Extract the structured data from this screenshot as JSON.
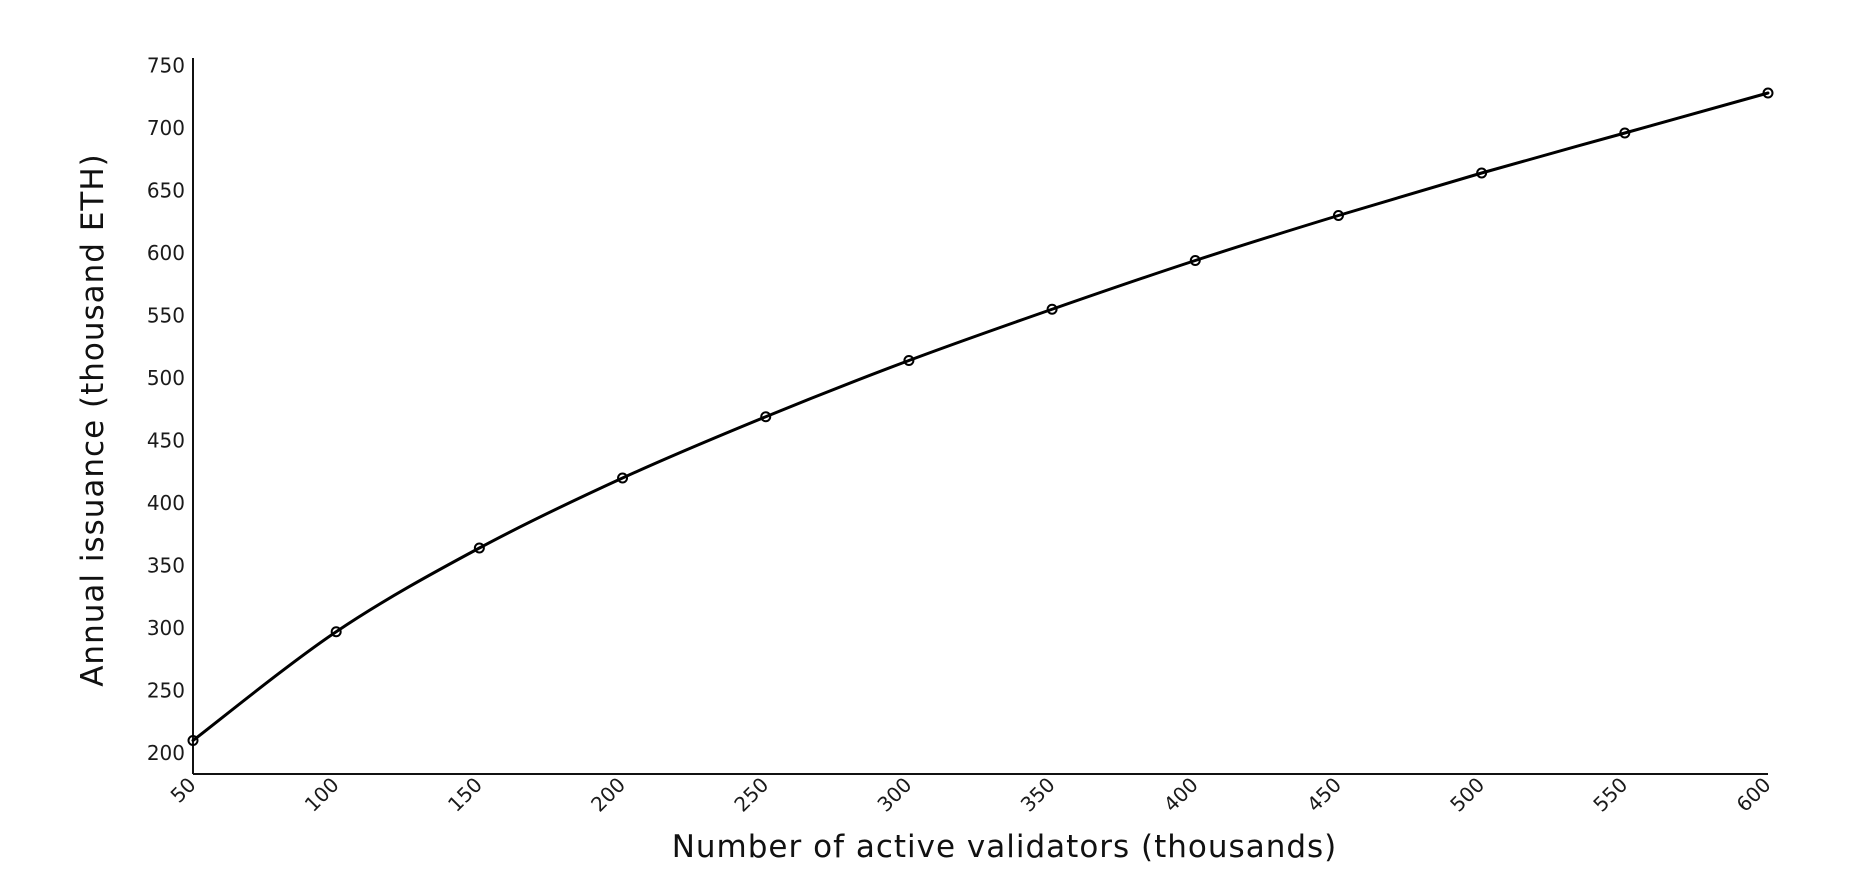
{
  "chart_data": {
    "type": "line",
    "title": "",
    "xlabel": "Number of active validators (thousands)",
    "ylabel": "Annual issuance (thousand ETH)",
    "x": [
      50,
      100,
      150,
      200,
      250,
      300,
      350,
      400,
      450,
      500,
      550,
      600
    ],
    "x_tick_labels": [
      "50",
      "100",
      "150",
      "200",
      "250",
      "300",
      "350",
      "400",
      "450",
      "500",
      "550",
      "600"
    ],
    "y_ticks": [
      200,
      250,
      300,
      350,
      400,
      450,
      500,
      550,
      600,
      650,
      700,
      750
    ],
    "y_tick_labels": [
      "200",
      "250",
      "300",
      "350",
      "400",
      "450",
      "500",
      "550",
      "600",
      "650",
      "700",
      "750"
    ],
    "xlim": [
      50,
      600
    ],
    "ylim": [
      183,
      750
    ],
    "grid": false,
    "legend": "none",
    "series": [
      {
        "values": [
          210,
          297,
          364,
          420,
          469,
          514,
          555,
          594,
          630,
          664,
          696,
          728
        ],
        "color": "#000000",
        "marker": "circle"
      }
    ]
  }
}
